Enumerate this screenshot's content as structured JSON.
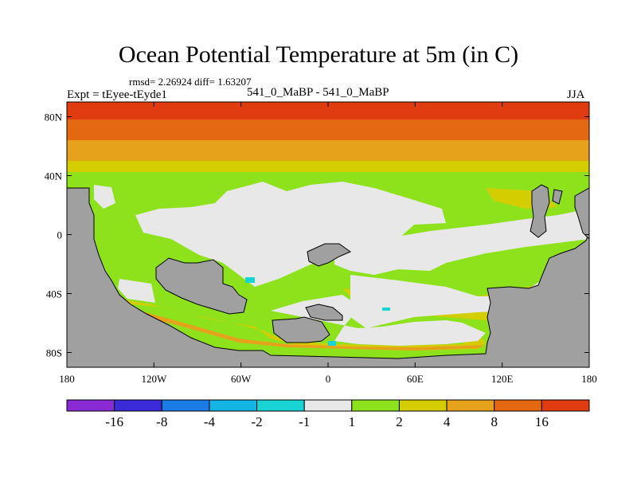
{
  "title": "Ocean Potential Temperature at 5m (in C)",
  "stats": "rmsd= 2.26924  diff= 1.63207",
  "left_string": "Expt = tEyee-tEyde1",
  "center_string": "541_0_MaBP - 541_0_MaBP",
  "right_string": "JJA",
  "map": {
    "lon_range": [
      -180,
      180
    ],
    "lat_range": [
      -90,
      90
    ],
    "x_ticks": [
      {
        "lon": -180,
        "label": "180"
      },
      {
        "lon": -120,
        "label": "120W"
      },
      {
        "lon": -60,
        "label": "60W"
      },
      {
        "lon": 0,
        "label": "0"
      },
      {
        "lon": 60,
        "label": "60E"
      },
      {
        "lon": 120,
        "label": "120E"
      },
      {
        "lon": 180,
        "label": "180"
      }
    ],
    "y_ticks": [
      {
        "lat": 80,
        "label": "80N"
      },
      {
        "lat": 40,
        "label": "40N"
      },
      {
        "lat": 0,
        "label": "0"
      },
      {
        "lat": -40,
        "label": "40S"
      },
      {
        "lat": -80,
        "label": "80S"
      }
    ],
    "land_color": "#a0a0a0",
    "colors": {
      "c_1_2": "#8ee21c",
      "c_2_4": "#d4cd00",
      "c_4_8": "#e7a21c",
      "c_8_16": "#e46812",
      "c_gt16": "#e03c10",
      "c_m1_1": "#e8e8e8",
      "c_m2_m1": "#18d4d4"
    }
  },
  "colorbar": {
    "colors": [
      "#8a2ad4",
      "#3a2ad8",
      "#1c7ce6",
      "#14b4e4",
      "#18d4d4",
      "#e8e8e8",
      "#8ee21c",
      "#d4cd00",
      "#e7a21c",
      "#e46812",
      "#e03c10"
    ],
    "labels": [
      "-16",
      "-8",
      "-4",
      "-2",
      "-1",
      "1",
      "2",
      "4",
      "8",
      "16"
    ]
  }
}
